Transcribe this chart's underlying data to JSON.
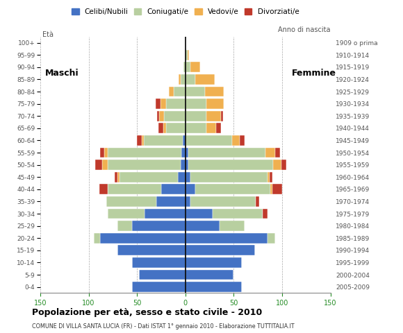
{
  "age_groups": [
    "0-4",
    "5-9",
    "10-14",
    "15-19",
    "20-24",
    "25-29",
    "30-34",
    "35-39",
    "40-44",
    "45-49",
    "50-54",
    "55-59",
    "60-64",
    "65-69",
    "70-74",
    "75-79",
    "80-84",
    "85-89",
    "90-94",
    "95-99",
    "100+"
  ],
  "birth_years": [
    "2005-2009",
    "2000-2004",
    "1995-1999",
    "1990-1994",
    "1985-1989",
    "1980-1984",
    "1975-1979",
    "1970-1974",
    "1965-1969",
    "1960-1964",
    "1955-1959",
    "1950-1954",
    "1945-1949",
    "1940-1944",
    "1935-1939",
    "1930-1934",
    "1925-1929",
    "1920-1924",
    "1915-1919",
    "1910-1914",
    "1909 o prima"
  ],
  "males_celibi": [
    55,
    48,
    55,
    70,
    88,
    55,
    42,
    30,
    25,
    8,
    5,
    4,
    3,
    0,
    0,
    0,
    0,
    0,
    0,
    0,
    0
  ],
  "males_coniugati": [
    0,
    0,
    0,
    0,
    7,
    15,
    38,
    52,
    55,
    60,
    75,
    76,
    40,
    20,
    22,
    20,
    12,
    5,
    2,
    0,
    0
  ],
  "males_vedovi": [
    0,
    0,
    0,
    0,
    0,
    0,
    0,
    0,
    0,
    2,
    6,
    4,
    2,
    3,
    5,
    6,
    5,
    2,
    0,
    0,
    0
  ],
  "males_divorziati": [
    0,
    0,
    0,
    0,
    0,
    0,
    0,
    0,
    9,
    3,
    7,
    4,
    5,
    5,
    2,
    5,
    0,
    0,
    0,
    0,
    0
  ],
  "females_nubili": [
    58,
    50,
    58,
    72,
    85,
    35,
    28,
    5,
    10,
    5,
    3,
    3,
    0,
    0,
    0,
    0,
    0,
    0,
    0,
    0,
    0
  ],
  "females_coniugate": [
    0,
    0,
    0,
    0,
    8,
    26,
    52,
    68,
    78,
    80,
    88,
    80,
    48,
    22,
    22,
    22,
    20,
    10,
    5,
    2,
    0
  ],
  "females_vedove": [
    0,
    0,
    0,
    0,
    0,
    0,
    0,
    0,
    2,
    2,
    8,
    10,
    8,
    10,
    15,
    18,
    20,
    20,
    10,
    2,
    0
  ],
  "females_divorziate": [
    0,
    0,
    0,
    0,
    0,
    0,
    5,
    3,
    10,
    3,
    5,
    5,
    5,
    5,
    2,
    0,
    0,
    0,
    0,
    0,
    0
  ],
  "colors": {
    "celibi": "#4472c4",
    "coniugati": "#b8cfa0",
    "vedovi": "#f0b050",
    "divorziati": "#c0392b"
  },
  "xlim": 150,
  "title": "Popolazione per età, sesso e stato civile - 2010",
  "subtitle": "COMUNE DI VILLA SANTA LUCIA (FR) - Dati ISTAT 1° gennaio 2010 - Elaborazione TUTTITALIA.IT",
  "legend_labels": [
    "Celibi/Nubili",
    "Coniugati/e",
    "Vedovi/e",
    "Divorziati/e"
  ]
}
